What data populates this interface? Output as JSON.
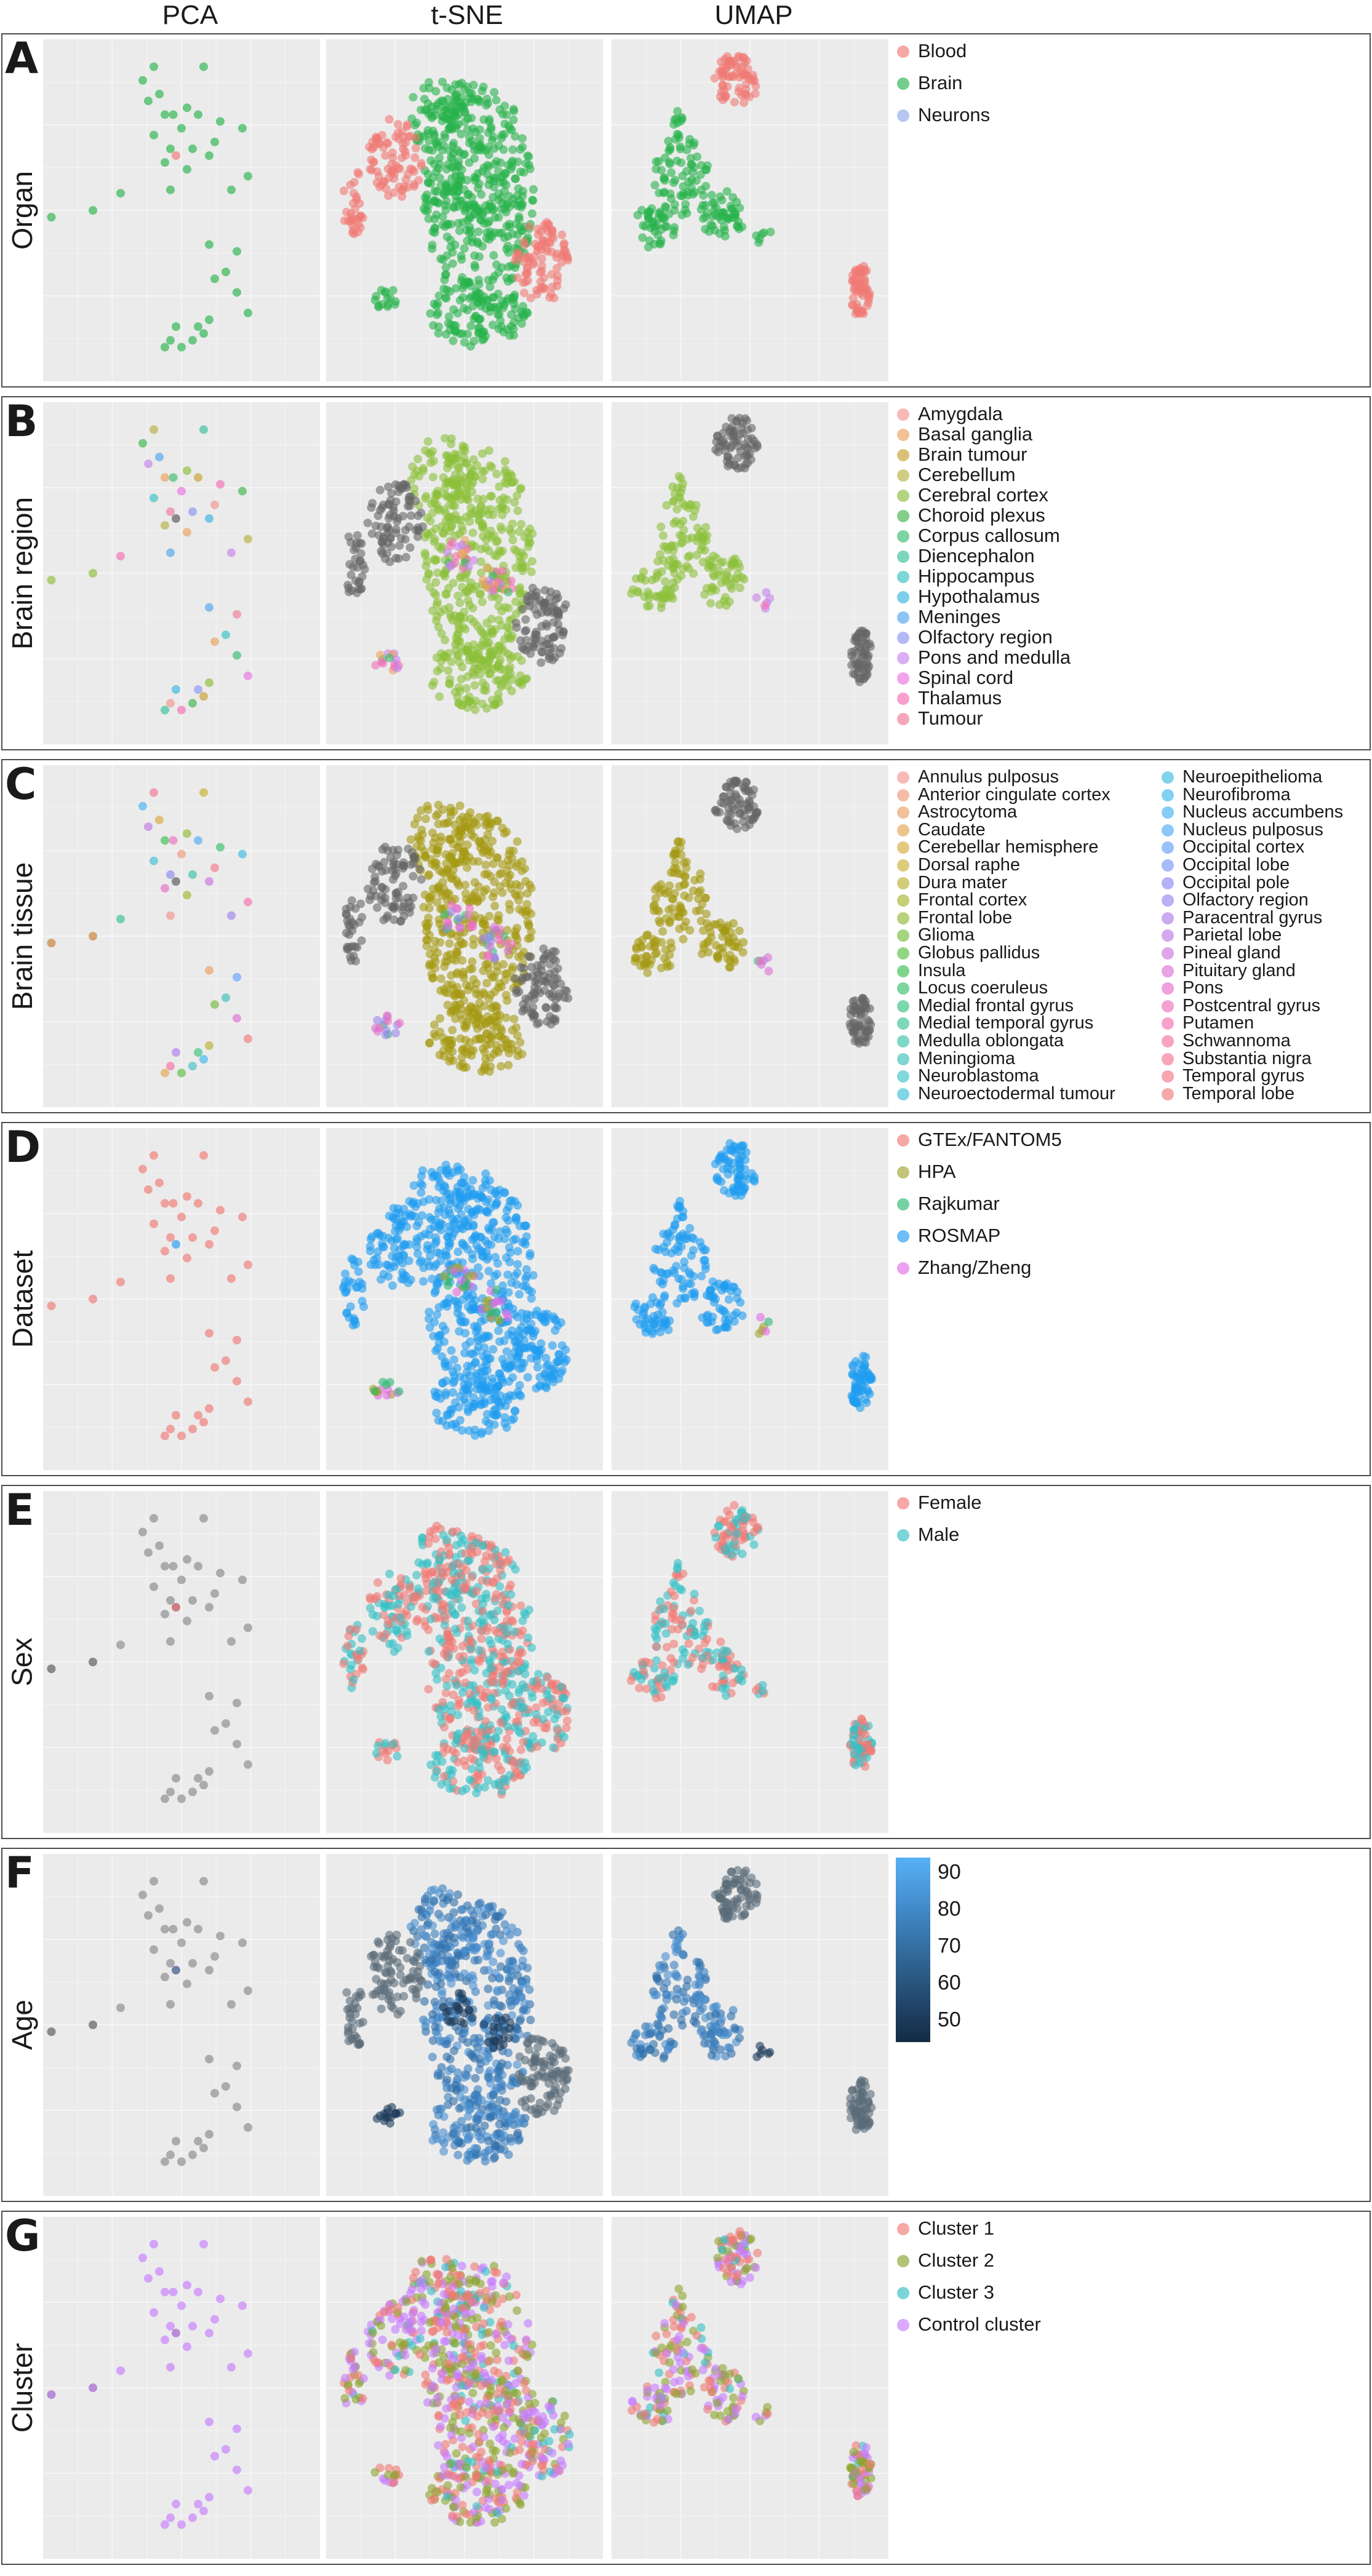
{
  "columns": [
    "PCA",
    "t-SNE",
    "UMAP"
  ],
  "rows": [
    {
      "letter": "A",
      "label": "Organ",
      "legend_cols": 1,
      "legend": [
        [
          "Blood",
          "#f07a75"
        ],
        [
          "Brain",
          "#27b34b"
        ],
        [
          "Neurons",
          "#8fa8e8"
        ]
      ]
    },
    {
      "letter": "B",
      "label": "Brain region",
      "legend_cols": 1,
      "legend": [
        [
          "Amygdala",
          "#f4948f"
        ],
        [
          "Basal ganglia",
          "#e9a15e"
        ],
        [
          "Brain tumour",
          "#c8a030"
        ],
        [
          "Cerebellum",
          "#b8b040"
        ],
        [
          "Cerebral cortex",
          "#8cbf3a"
        ],
        [
          "Choroid plexus",
          "#3db54a"
        ],
        [
          "Corpus callosum",
          "#37bb6e"
        ],
        [
          "Diencephalon",
          "#34c09a"
        ],
        [
          "Hippocampus",
          "#38c2c2"
        ],
        [
          "Hypothalamus",
          "#35b7df"
        ],
        [
          "Meninges",
          "#4ea6ee"
        ],
        [
          "Olfactory region",
          "#8a94f0"
        ],
        [
          "Pons and medulla",
          "#c782ec"
        ],
        [
          "Spinal cord",
          "#ea72e0"
        ],
        [
          "Thalamus",
          "#f46fb6"
        ],
        [
          "Tumour",
          "#f07a98"
        ]
      ]
    },
    {
      "letter": "C",
      "label": "Brain tissue",
      "legend_cols": 2,
      "legend": [
        [
          "Annulus pulposus",
          "#f4948f"
        ],
        [
          "Anterior cingulate cortex",
          "#f09a7a"
        ],
        [
          "Astrocytoma",
          "#e9a066"
        ],
        [
          "Caudate",
          "#e2a650"
        ],
        [
          "Cerebellar hemisphere",
          "#d7ab3c"
        ],
        [
          "Dorsal raphe",
          "#c9af30"
        ],
        [
          "Dura mater",
          "#b9b230"
        ],
        [
          "Frontal cortex",
          "#a6b530"
        ],
        [
          "Frontal lobe",
          "#91b935"
        ],
        [
          "Glioma",
          "#77bc3b"
        ],
        [
          "Globus pallidus",
          "#58be44"
        ],
        [
          "Insula",
          "#3cbf52"
        ],
        [
          "Locus coeruleus",
          "#35c068"
        ],
        [
          "Medial frontal gyrus",
          "#36c17e"
        ],
        [
          "Medial temporal gyrus",
          "#38c293"
        ],
        [
          "Medulla oblongata",
          "#3ac2a6"
        ],
        [
          "Meningioma",
          "#3cc2b8"
        ],
        [
          "Neuroblastoma",
          "#3dc1c8"
        ],
        [
          "Neuroectodermal tumour",
          "#3ebfd6"
        ],
        [
          "Neuroepithelioma",
          "#3dbce2"
        ],
        [
          "Neurofibroma",
          "#3db8ec"
        ],
        [
          "Nucleus accumbens",
          "#44b2f2"
        ],
        [
          "Nucleus pulposus",
          "#52aaf5"
        ],
        [
          "Occipital cortex",
          "#64a0f6"
        ],
        [
          "Occipital lobe",
          "#7896f5"
        ],
        [
          "Occipital pole",
          "#8a8cf2"
        ],
        [
          "Olfactory region",
          "#9c84ee"
        ],
        [
          "Paracentral gyrus",
          "#ad7de9"
        ],
        [
          "Parietal lobe",
          "#be78e4"
        ],
        [
          "Pineal gland",
          "#cd74dd"
        ],
        [
          "Pituitary gland",
          "#da71d4"
        ],
        [
          "Pons",
          "#e56fca"
        ],
        [
          "Postcentral gyrus",
          "#ee6ebd"
        ],
        [
          "Putamen",
          "#f36fb0"
        ],
        [
          "Schwannoma",
          "#f671a2"
        ],
        [
          "Substantia nigra",
          "#f67493"
        ],
        [
          "Temporal gyrus",
          "#f47885"
        ],
        [
          "Temporal lobe",
          "#f07c7b"
        ]
      ]
    },
    {
      "letter": "D",
      "label": "Dataset",
      "legend_cols": 1,
      "legend": [
        [
          "GTEx/FANTOM5",
          "#f07a75"
        ],
        [
          "HPA",
          "#a3a530"
        ],
        [
          "Rajkumar",
          "#2fb872"
        ],
        [
          "ROSMAP",
          "#1f9df0"
        ],
        [
          "Zhang/Zheng",
          "#e56be6"
        ]
      ]
    },
    {
      "letter": "E",
      "label": "Sex",
      "legend_cols": 1,
      "legend": [
        [
          "Female",
          "#f07a75"
        ],
        [
          "Male",
          "#33bfc4"
        ]
      ]
    },
    {
      "letter": "F",
      "label": "Age",
      "legend_cols": 1,
      "legend": [],
      "colorbar": {
        "ticks": [
          50,
          60,
          70,
          80,
          90
        ],
        "min": 44,
        "max": 94,
        "low_color": "#132b43",
        "high_color": "#56b1f7"
      }
    },
    {
      "letter": "G",
      "label": "Cluster",
      "legend_cols": 1,
      "legend": [
        [
          "Cluster 1",
          "#f07a75"
        ],
        [
          "Cluster 2",
          "#8ca52e"
        ],
        [
          "Cluster 3",
          "#33bfc4"
        ],
        [
          "Control cluster",
          "#c77cff"
        ]
      ]
    }
  ],
  "chart_data": [
    {
      "type": "scatter",
      "method": "PCA",
      "x_range": [
        0,
        100
      ],
      "y_range": [
        0,
        100
      ],
      "points": [
        [
          3,
          48
        ],
        [
          18,
          50
        ],
        [
          28,
          55
        ],
        [
          36,
          88
        ],
        [
          38,
          82
        ],
        [
          40,
          92
        ],
        [
          42,
          84
        ],
        [
          44,
          78
        ],
        [
          40,
          72
        ],
        [
          46,
          68
        ],
        [
          47,
          78
        ],
        [
          50,
          74
        ],
        [
          52,
          80
        ],
        [
          54,
          68
        ],
        [
          56,
          78
        ],
        [
          60,
          66
        ],
        [
          62,
          70
        ],
        [
          58,
          92
        ],
        [
          64,
          76
        ],
        [
          72,
          74
        ],
        [
          68,
          56
        ],
        [
          74,
          60
        ],
        [
          60,
          40
        ],
        [
          62,
          30
        ],
        [
          66,
          32
        ],
        [
          70,
          38
        ],
        [
          70,
          26
        ],
        [
          74,
          20
        ],
        [
          60,
          18
        ],
        [
          56,
          16
        ],
        [
          58,
          14
        ],
        [
          48,
          16
        ],
        [
          46,
          12
        ],
        [
          44,
          10
        ],
        [
          50,
          10
        ],
        [
          54,
          12
        ],
        [
          48,
          66
        ],
        [
          44,
          64
        ],
        [
          46,
          56
        ],
        [
          52,
          62
        ]
      ]
    },
    {
      "type": "scatter",
      "method": "t-SNE",
      "note": "dense clusters of samples; drawn as point clouds"
    },
    {
      "type": "scatter",
      "method": "UMAP",
      "note": "dense clusters of samples; drawn as point clouds"
    }
  ]
}
